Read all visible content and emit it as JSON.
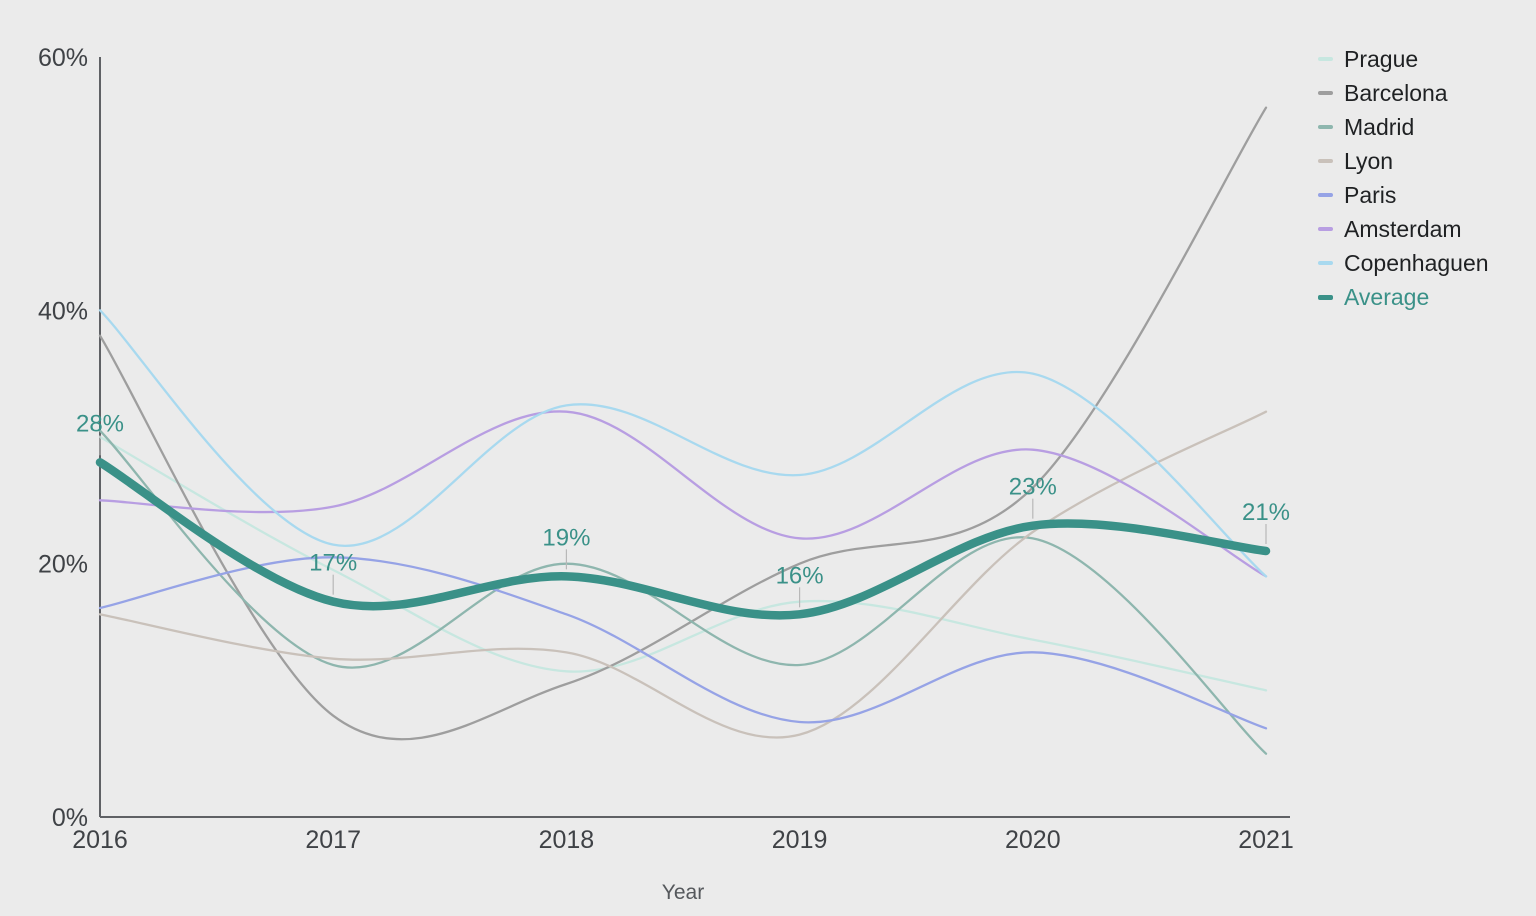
{
  "chart_data": {
    "type": "line",
    "title": "",
    "xlabel": "Year",
    "ylabel": "",
    "x_labels": [
      "2016",
      "2017",
      "2018",
      "2019",
      "2020",
      "2021"
    ],
    "y_ticks": [
      {
        "label": "60%",
        "value": 60
      },
      {
        "label": "40%",
        "value": 40
      },
      {
        "label": "20%",
        "value": 20
      },
      {
        "label": "0%",
        "value": 0
      }
    ],
    "ylim": [
      0,
      60
    ],
    "grid": false,
    "legend_position": "right",
    "curve": "smooth",
    "series": [
      {
        "name": "Prague",
        "color": "#c7e7e0",
        "values": [
          30,
          19.5,
          11.5,
          17,
          14,
          10
        ]
      },
      {
        "name": "Barcelona",
        "color": "#9e9e9e",
        "values": [
          38,
          8,
          10.5,
          20,
          26,
          56
        ]
      },
      {
        "name": "Madrid",
        "color": "#8eb6ae",
        "values": [
          30.5,
          12,
          20,
          12,
          22,
          5
        ]
      },
      {
        "name": "Lyon",
        "color": "#c9c1ba",
        "values": [
          16,
          12.5,
          13,
          6.5,
          22.5,
          32
        ]
      },
      {
        "name": "Paris",
        "color": "#96a3e6",
        "values": [
          16.5,
          20.5,
          16,
          7.5,
          13,
          7
        ]
      },
      {
        "name": "Amsterdam",
        "color": "#b89ee2",
        "values": [
          25,
          24.5,
          32,
          22,
          29,
          19
        ]
      },
      {
        "name": "Copenhaguen",
        "color": "#a8d9ef",
        "values": [
          40,
          21.5,
          32.5,
          27,
          35,
          19
        ]
      },
      {
        "name": "Average",
        "color": "#3a9188",
        "values": [
          28,
          17,
          19,
          16,
          23,
          21
        ],
        "emphasis": true,
        "point_labels": [
          "28%",
          "17%",
          "19%",
          "16%",
          "23%",
          "21%"
        ]
      }
    ]
  },
  "colors": {
    "background": "#ebebeb",
    "axis_line": "#5f6165",
    "tick_text": "#3f4246",
    "legend_text": "#1f2123",
    "average_label": "#3a9188",
    "leader_tick": "#b8b8b8"
  }
}
